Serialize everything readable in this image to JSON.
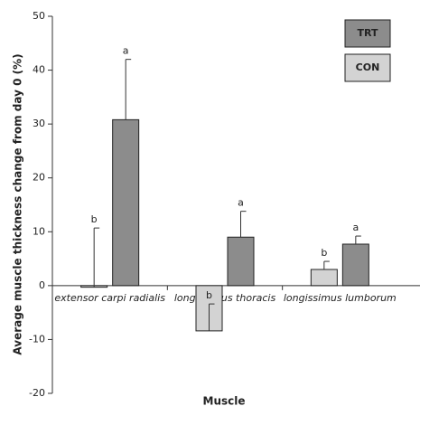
{
  "chart_data": {
    "type": "bar",
    "ylabel": "Average muscle thickness change from day 0 (%)",
    "xlabel": "Muscle",
    "categories": [
      "extensor carpi radialis",
      "longissimus thoracis",
      "longissimus lumborum"
    ],
    "series": [
      {
        "name": "CON",
        "color": "#d3d3d3",
        "values": [
          -0.3,
          -8.4,
          3.0
        ],
        "errors": [
          11.0,
          5.0,
          1.5
        ],
        "letters": [
          "b",
          "b",
          "b"
        ]
      },
      {
        "name": "TRT",
        "color": "#8c8c8c",
        "values": [
          30.8,
          9.0,
          7.7
        ],
        "errors": [
          11.2,
          4.8,
          1.5
        ],
        "letters": [
          "a",
          "a",
          "a"
        ]
      }
    ],
    "ylim": [
      -20,
      50
    ],
    "yticks": [
      -20,
      -10,
      0,
      10,
      20,
      30,
      40,
      50
    ],
    "legend": "top-right",
    "legend_order": [
      1,
      0
    ]
  }
}
